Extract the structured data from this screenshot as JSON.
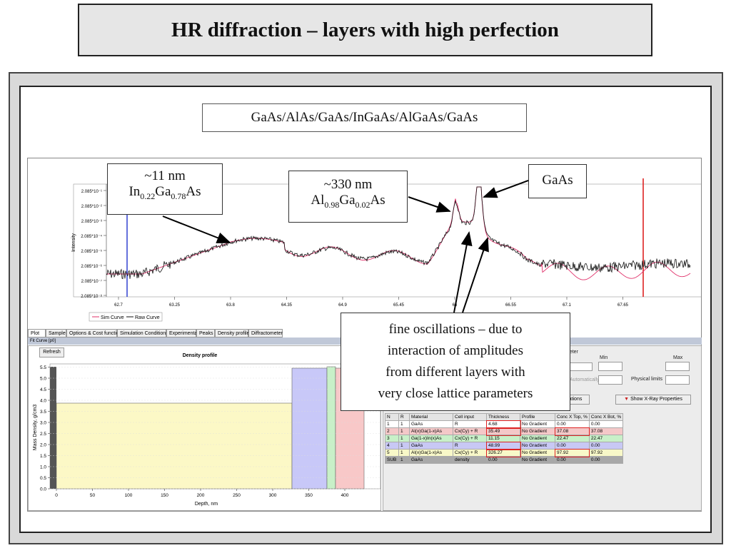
{
  "slide": {
    "title": "HR diffraction – layers with high perfection",
    "formula": "GaAs/AlAs/GaAs/InGaAs/AlGaAs/GaAs"
  },
  "callouts": {
    "ingaas": {
      "line1": "~11 nm",
      "el1": "In",
      "sub1": "0.22",
      "el2": "Ga",
      "sub2": "0.78",
      "el3": "As"
    },
    "algaas": {
      "line1": "~330 nm",
      "el1": "Al",
      "sub1": "0.98",
      "el2": "Ga",
      "sub2": "0.02",
      "el3": "As"
    },
    "gaas": {
      "text": "GaAs"
    },
    "oscillations": {
      "lines": [
        "fine oscillations – due to",
        "interaction of amplitudes",
        "from different layers with",
        "very close lattice parameters"
      ]
    }
  },
  "top_plot": {
    "ylabel": "Intensity",
    "y_ticks": [
      "2.085*10⁻¹",
      "2.085*10⁻²",
      "2.085*10⁻³",
      "2.085*10⁻⁴",
      "2.085*10⁻⁵",
      "2.085*10⁻⁶",
      "2.085*10⁻⁷",
      "2.085*10⁻⁸"
    ],
    "x_ticks": [
      "62.7",
      "63.25",
      "63.8",
      "64.35",
      "64.9",
      "65.45",
      "66",
      "66.55",
      "67.1",
      "67.65"
    ],
    "legend": [
      "Sim Curve",
      "Raw Curve"
    ],
    "colors": {
      "sim": "#e0306a",
      "raw": "#111111",
      "left_marker": "#2233cc",
      "right_marker": "#dd2222"
    }
  },
  "tabs": [
    "Plot",
    "Sample",
    "Options & Cost function",
    "Simulation Conditions",
    "Experimental",
    "Peaks",
    "Density profile",
    "Diffractometer"
  ],
  "window_title": "Fit Curve [p0]",
  "density_panel": {
    "refresh": "Refresh",
    "title": "Density profile",
    "ylabel": "Mass Density, g/cm3",
    "xlabel": "Depth, nm",
    "y_ticks": [
      "0.0",
      "0.5",
      "1.0",
      "1.5",
      "2.0",
      "2.5",
      "3.0",
      "3.5",
      "4.0",
      "4.5",
      "5.0",
      "5.5"
    ],
    "x_ticks": [
      "0",
      "50",
      "100",
      "150",
      "200",
      "250",
      "300",
      "350",
      "400"
    ]
  },
  "right_panel": {
    "param_label": "meter",
    "min_label": "Min",
    "max_label": "Max",
    "physical_limits": "Physical limits",
    "auto_label": "Automatically",
    "operations_button": "ations",
    "xray_button": "Show X-Ray Properties"
  },
  "layers_table": {
    "headers": [
      "N",
      "R",
      "Material",
      "Cell input",
      "Thickness",
      "Profile",
      "Conc X Top, %",
      "Conc X Bot, %"
    ],
    "rows": [
      [
        "1",
        "1",
        "GaAs",
        "R",
        "4.68",
        "No Gradient",
        "0.00",
        "0.00"
      ],
      [
        "2",
        "1",
        "Al(x)Ga(1-x)As",
        "Cx(Cy) + R",
        "35.49",
        "No Gradient",
        "37.08",
        "37.08"
      ],
      [
        "3",
        "1",
        "Ga(1-x)In(x)As",
        "Cx(Cy) + R",
        "11.15",
        "No Gradient",
        "22.47",
        "22.47"
      ],
      [
        "4",
        "1",
        "GaAs",
        "R",
        "48.99",
        "No Gradient",
        "0.00",
        "0.00"
      ],
      [
        "5",
        "1",
        "Al(x)Ga(1-x)As",
        "Cx(Cy) + R",
        "326.27",
        "No Gradient",
        "97.92",
        "97.92"
      ],
      [
        "SUB",
        "1",
        "GaAs",
        "density",
        "0.00",
        "No Gradient",
        "0.00",
        "0.00"
      ]
    ],
    "row_colors": [
      "#ffffff",
      "#f4c8c8",
      "#c8f0c8",
      "#c8c8f4",
      "#f8f8c8",
      "#a8a8a8"
    ]
  }
}
